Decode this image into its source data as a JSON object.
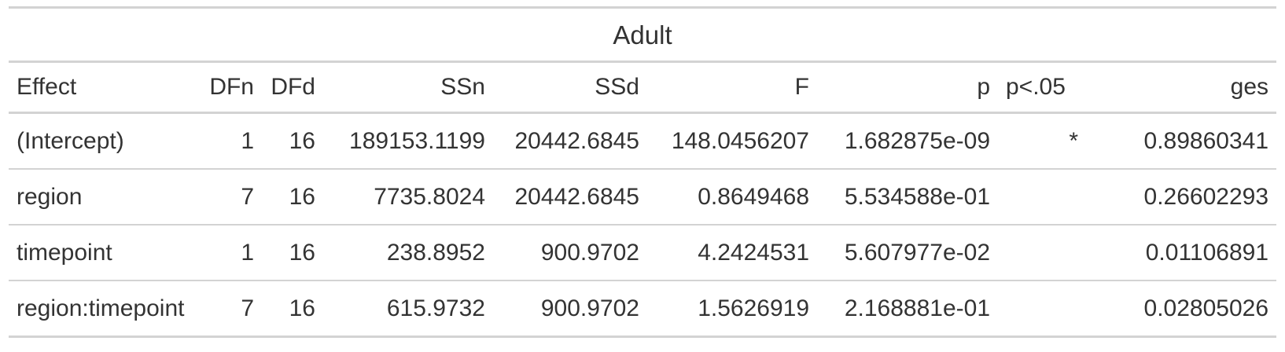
{
  "table": {
    "title": "Adult",
    "columns": [
      "Effect",
      "DFn",
      "DFd",
      "SSn",
      "SSd",
      "F",
      "p",
      "p<.05",
      "ges"
    ],
    "rows": [
      [
        "(Intercept)",
        "1",
        "16",
        "189153.1199",
        "20442.6845",
        "148.0456207",
        "1.682875e-09",
        "*",
        "0.89860341"
      ],
      [
        "region",
        "7",
        "16",
        "7735.8024",
        "20442.6845",
        "0.8649468",
        "5.534588e-01",
        "",
        "0.26602293"
      ],
      [
        "timepoint",
        "1",
        "16",
        "238.8952",
        "900.9702",
        "4.2424531",
        "5.607977e-02",
        "",
        "0.01106891"
      ],
      [
        "region:timepoint",
        "7",
        "16",
        "615.9732",
        "900.9702",
        "1.5626919",
        "2.168881e-01",
        "",
        "0.02805026"
      ]
    ]
  },
  "colors": {
    "text": "#333333",
    "rule": "#d3d3d3"
  }
}
